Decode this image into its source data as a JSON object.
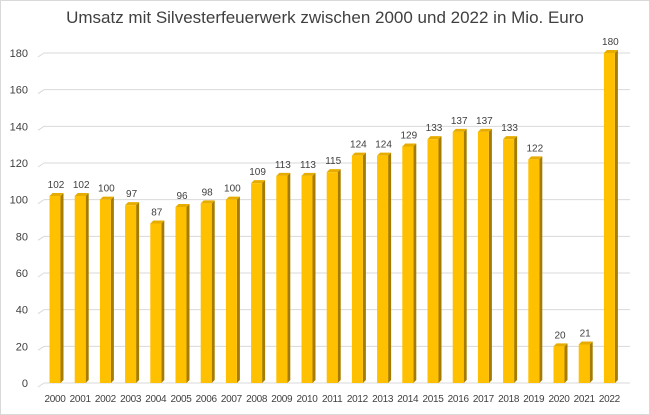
{
  "chart_data": {
    "type": "bar",
    "title": "Umsatz mit Silvesterfeuerwerk zwischen 2000 und 2022 in Mio. Euro",
    "categories": [
      "2000",
      "2001",
      "2002",
      "2003",
      "2004",
      "2005",
      "2006",
      "2007",
      "2008",
      "2009",
      "2010",
      "2011",
      "2012",
      "2013",
      "2014",
      "2015",
      "2016",
      "2017",
      "2018",
      "2019",
      "2020",
      "2021",
      "2022"
    ],
    "values": [
      102,
      102,
      100,
      97,
      87,
      96,
      98,
      100,
      109,
      113,
      113,
      115,
      124,
      124,
      129,
      133,
      137,
      137,
      133,
      122,
      20,
      21,
      180
    ],
    "ylim": [
      0,
      180
    ],
    "yticks": [
      0,
      20,
      40,
      60,
      80,
      100,
      120,
      140,
      160,
      180
    ],
    "grid": true,
    "bar_style": "3d",
    "colors": {
      "bar_front": "#ffc000",
      "bar_side": "#a67c00",
      "bar_top": "#e6ad00",
      "grid": "#d9d9d9"
    }
  }
}
